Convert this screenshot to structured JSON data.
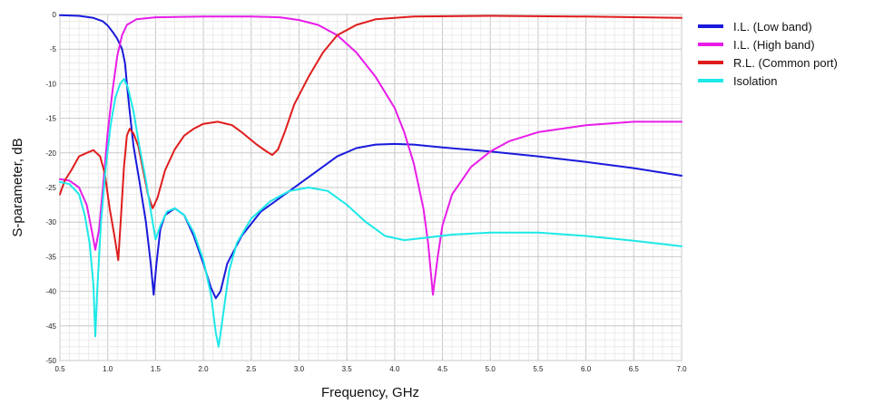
{
  "chart_data": {
    "type": "line",
    "title": "",
    "xlabel": "Frequency, GHz",
    "ylabel": "S-parameter, dB",
    "xlim": [
      0.5,
      7.0
    ],
    "ylim": [
      -50,
      0
    ],
    "xticks": [
      "0.5",
      "1.0",
      "1.5",
      "2.0",
      "2.5",
      "3.0",
      "3.5",
      "4.0",
      "4.5",
      "5.0",
      "5.5",
      "6.0",
      "6.5",
      "7.0"
    ],
    "yticks": [
      "0",
      "-5",
      "-10",
      "-15",
      "-20",
      "-25",
      "-30",
      "-35",
      "-40",
      "-45",
      "-50"
    ],
    "grid": true,
    "legend_position": "right",
    "series": [
      {
        "name": "I.L. (Low band)",
        "color": "#1a1adc",
        "points": [
          [
            0.5,
            -0.1
          ],
          [
            0.7,
            -0.2
          ],
          [
            0.85,
            -0.5
          ],
          [
            0.95,
            -1
          ],
          [
            1.0,
            -1.6
          ],
          [
            1.05,
            -2.5
          ],
          [
            1.1,
            -3.5
          ],
          [
            1.15,
            -5
          ],
          [
            1.18,
            -7
          ],
          [
            1.2,
            -10
          ],
          [
            1.23,
            -14
          ],
          [
            1.27,
            -19
          ],
          [
            1.33,
            -24
          ],
          [
            1.4,
            -30
          ],
          [
            1.45,
            -36
          ],
          [
            1.48,
            -40.5
          ],
          [
            1.51,
            -36
          ],
          [
            1.55,
            -31
          ],
          [
            1.6,
            -29
          ],
          [
            1.7,
            -28
          ],
          [
            1.8,
            -29
          ],
          [
            1.9,
            -32
          ],
          [
            2.0,
            -36
          ],
          [
            2.08,
            -39.5
          ],
          [
            2.13,
            -41
          ],
          [
            2.18,
            -40
          ],
          [
            2.25,
            -36
          ],
          [
            2.4,
            -32
          ],
          [
            2.6,
            -28.5
          ],
          [
            2.8,
            -26.5
          ],
          [
            3.0,
            -24.5
          ],
          [
            3.2,
            -22.5
          ],
          [
            3.4,
            -20.5
          ],
          [
            3.6,
            -19.3
          ],
          [
            3.8,
            -18.8
          ],
          [
            4.0,
            -18.7
          ],
          [
            4.2,
            -18.8
          ],
          [
            4.5,
            -19.2
          ],
          [
            5.0,
            -19.8
          ],
          [
            5.5,
            -20.5
          ],
          [
            6.0,
            -21.3
          ],
          [
            6.5,
            -22.2
          ],
          [
            7.0,
            -23.3
          ]
        ]
      },
      {
        "name": "I.L. (High band)",
        "color": "#e81ce8",
        "points": [
          [
            0.5,
            -23.8
          ],
          [
            0.6,
            -24
          ],
          [
            0.7,
            -25
          ],
          [
            0.78,
            -27.5
          ],
          [
            0.83,
            -31
          ],
          [
            0.87,
            -34
          ],
          [
            0.91,
            -31
          ],
          [
            0.95,
            -25
          ],
          [
            1.0,
            -17
          ],
          [
            1.05,
            -11
          ],
          [
            1.1,
            -6
          ],
          [
            1.15,
            -3
          ],
          [
            1.2,
            -1.5
          ],
          [
            1.3,
            -0.7
          ],
          [
            1.5,
            -0.4
          ],
          [
            2.0,
            -0.3
          ],
          [
            2.5,
            -0.3
          ],
          [
            2.8,
            -0.4
          ],
          [
            3.0,
            -0.8
          ],
          [
            3.2,
            -1.5
          ],
          [
            3.4,
            -3
          ],
          [
            3.6,
            -5.5
          ],
          [
            3.8,
            -9
          ],
          [
            4.0,
            -13.5
          ],
          [
            4.1,
            -17
          ],
          [
            4.2,
            -21.5
          ],
          [
            4.3,
            -28
          ],
          [
            4.35,
            -33
          ],
          [
            4.4,
            -40.5
          ],
          [
            4.45,
            -35
          ],
          [
            4.5,
            -30.5
          ],
          [
            4.6,
            -26
          ],
          [
            4.8,
            -22
          ],
          [
            5.0,
            -19.8
          ],
          [
            5.2,
            -18.3
          ],
          [
            5.5,
            -17
          ],
          [
            6.0,
            -16
          ],
          [
            6.5,
            -15.5
          ],
          [
            7.0,
            -15.5
          ]
        ]
      },
      {
        "name": "R.L. (Common port)",
        "color": "#e01c1c",
        "points": [
          [
            0.5,
            -26
          ],
          [
            0.55,
            -24
          ],
          [
            0.62,
            -22.5
          ],
          [
            0.7,
            -20.5
          ],
          [
            0.78,
            -20
          ],
          [
            0.85,
            -19.6
          ],
          [
            0.92,
            -20.5
          ],
          [
            0.97,
            -23
          ],
          [
            1.02,
            -28
          ],
          [
            1.07,
            -32
          ],
          [
            1.11,
            -35.5
          ],
          [
            1.14,
            -29
          ],
          [
            1.17,
            -22
          ],
          [
            1.2,
            -17.5
          ],
          [
            1.23,
            -16.5
          ],
          [
            1.27,
            -17.2
          ],
          [
            1.32,
            -19
          ],
          [
            1.37,
            -22.5
          ],
          [
            1.42,
            -26
          ],
          [
            1.47,
            -28
          ],
          [
            1.52,
            -26.5
          ],
          [
            1.6,
            -22.5
          ],
          [
            1.7,
            -19.5
          ],
          [
            1.8,
            -17.5
          ],
          [
            1.9,
            -16.5
          ],
          [
            2.0,
            -15.8
          ],
          [
            2.15,
            -15.5
          ],
          [
            2.3,
            -16
          ],
          [
            2.4,
            -17
          ],
          [
            2.55,
            -18.7
          ],
          [
            2.65,
            -19.7
          ],
          [
            2.72,
            -20.3
          ],
          [
            2.78,
            -19.5
          ],
          [
            2.85,
            -17
          ],
          [
            2.95,
            -13
          ],
          [
            3.1,
            -9
          ],
          [
            3.25,
            -5.5
          ],
          [
            3.4,
            -3
          ],
          [
            3.6,
            -1.5
          ],
          [
            3.8,
            -0.7
          ],
          [
            4.2,
            -0.3
          ],
          [
            5.0,
            -0.2
          ],
          [
            6.0,
            -0.3
          ],
          [
            7.0,
            -0.5
          ]
        ]
      },
      {
        "name": "Isolation",
        "color": "#1ce8e8",
        "points": [
          [
            0.5,
            -24.2
          ],
          [
            0.6,
            -24.5
          ],
          [
            0.7,
            -26
          ],
          [
            0.76,
            -29
          ],
          [
            0.81,
            -33
          ],
          [
            0.85,
            -39
          ],
          [
            0.87,
            -46.5
          ],
          [
            0.89,
            -40
          ],
          [
            0.93,
            -30
          ],
          [
            0.98,
            -22
          ],
          [
            1.03,
            -16
          ],
          [
            1.08,
            -12
          ],
          [
            1.13,
            -10
          ],
          [
            1.17,
            -9.3
          ],
          [
            1.21,
            -10.5
          ],
          [
            1.27,
            -14
          ],
          [
            1.33,
            -19
          ],
          [
            1.4,
            -24
          ],
          [
            1.47,
            -30
          ],
          [
            1.5,
            -32.5
          ],
          [
            1.55,
            -30.5
          ],
          [
            1.62,
            -28.5
          ],
          [
            1.7,
            -28
          ],
          [
            1.8,
            -29
          ],
          [
            1.9,
            -31.5
          ],
          [
            2.0,
            -35.5
          ],
          [
            2.08,
            -40.5
          ],
          [
            2.13,
            -46
          ],
          [
            2.16,
            -48
          ],
          [
            2.2,
            -44
          ],
          [
            2.27,
            -37
          ],
          [
            2.35,
            -33
          ],
          [
            2.5,
            -29.5
          ],
          [
            2.7,
            -27
          ],
          [
            2.9,
            -25.5
          ],
          [
            3.1,
            -25
          ],
          [
            3.3,
            -25.5
          ],
          [
            3.5,
            -27.5
          ],
          [
            3.7,
            -30
          ],
          [
            3.9,
            -32
          ],
          [
            4.1,
            -32.6
          ],
          [
            4.3,
            -32.3
          ],
          [
            4.6,
            -31.8
          ],
          [
            5.0,
            -31.5
          ],
          [
            5.5,
            -31.5
          ],
          [
            6.0,
            -32
          ],
          [
            6.5,
            -32.7
          ],
          [
            7.0,
            -33.5
          ]
        ]
      }
    ]
  }
}
